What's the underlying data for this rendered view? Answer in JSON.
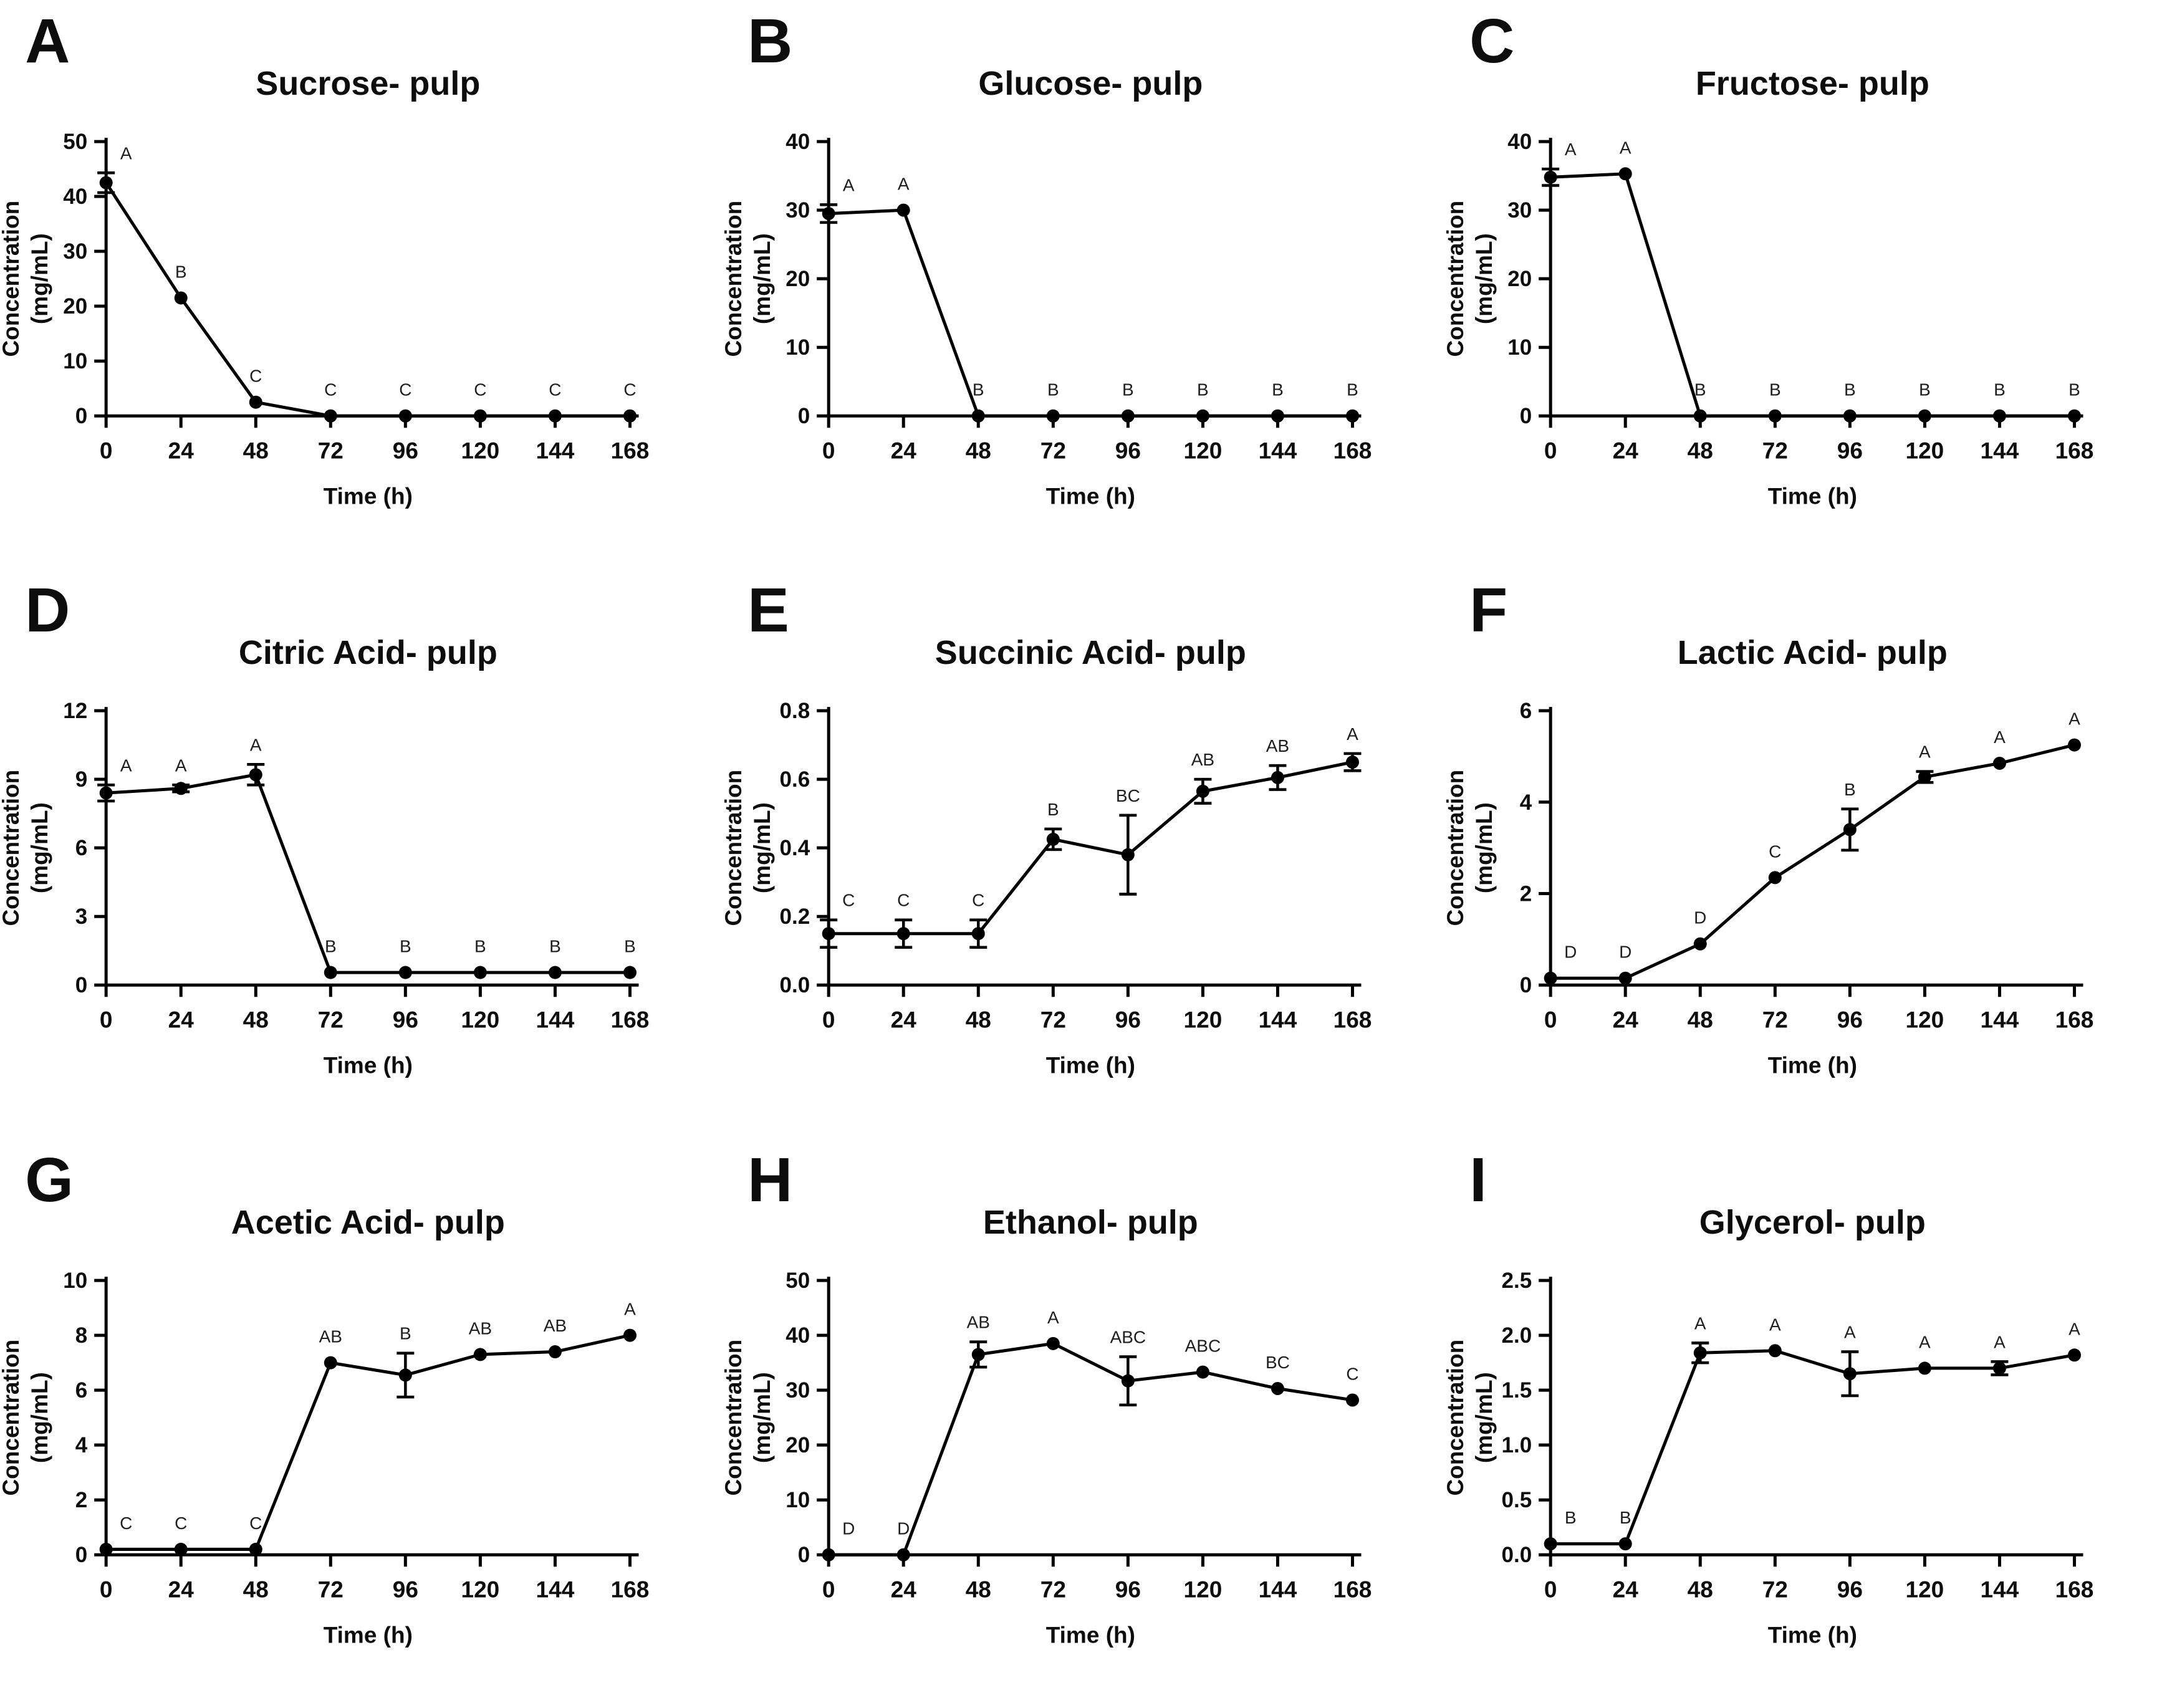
{
  "figure": {
    "background_color": "#ffffff",
    "ink_color": "#000000",
    "letter_color": "#1f1f1f",
    "ylabel_line1": "Concentration",
    "ylabel_line2": "(mg/mL)",
    "xlabel": "Time (h)",
    "x_ticks": [
      "0",
      "24",
      "48",
      "72",
      "96",
      "120",
      "144",
      "168"
    ]
  },
  "chart_data": [
    {
      "type": "line",
      "panel_letter": "A",
      "title": "Sucrose- pulp",
      "xlabel": "Time (h)",
      "ylabel": "Concentration (mg/mL)",
      "x": [
        0,
        24,
        48,
        72,
        96,
        120,
        144,
        168
      ],
      "values": [
        42.5,
        21.5,
        2.5,
        0,
        0,
        0,
        0,
        0
      ],
      "errors": [
        1.8,
        0,
        0,
        0,
        0,
        0,
        0,
        0
      ],
      "point_labels": [
        "A",
        "B",
        "C",
        "C",
        "C",
        "C",
        "C",
        "C"
      ],
      "ylim": [
        0,
        50
      ],
      "yticks": [
        0,
        10,
        20,
        30,
        40,
        50
      ],
      "ytick_labels": [
        "0",
        "10",
        "20",
        "30",
        "40",
        "50"
      ]
    },
    {
      "type": "line",
      "panel_letter": "B",
      "title": "Glucose- pulp",
      "xlabel": "Time (h)",
      "ylabel": "Concentration (mg/mL)",
      "x": [
        0,
        24,
        48,
        72,
        96,
        120,
        144,
        168
      ],
      "values": [
        29.5,
        30.0,
        0,
        0,
        0,
        0,
        0,
        0
      ],
      "errors": [
        1.3,
        0,
        0,
        0,
        0,
        0,
        0,
        0
      ],
      "point_labels": [
        "A",
        "A",
        "B",
        "B",
        "B",
        "B",
        "B",
        "B"
      ],
      "ylim": [
        0,
        40
      ],
      "yticks": [
        0,
        10,
        20,
        30,
        40
      ],
      "ytick_labels": [
        "0",
        "10",
        "20",
        "30",
        "40"
      ]
    },
    {
      "type": "line",
      "panel_letter": "C",
      "title": "Fructose- pulp",
      "xlabel": "Time (h)",
      "ylabel": "Concentration (mg/mL)",
      "x": [
        0,
        24,
        48,
        72,
        96,
        120,
        144,
        168
      ],
      "values": [
        34.8,
        35.3,
        0,
        0,
        0,
        0,
        0,
        0
      ],
      "errors": [
        1.2,
        0,
        0,
        0,
        0,
        0,
        0,
        0
      ],
      "point_labels": [
        "A",
        "A",
        "B",
        "B",
        "B",
        "B",
        "B",
        "B"
      ],
      "ylim": [
        0,
        40
      ],
      "yticks": [
        0,
        10,
        20,
        30,
        40
      ],
      "ytick_labels": [
        "0",
        "10",
        "20",
        "30",
        "40"
      ]
    },
    {
      "type": "line",
      "panel_letter": "D",
      "title": "Citric Acid- pulp",
      "xlabel": "Time (h)",
      "ylabel": "Concentration (mg/mL)",
      "x": [
        0,
        24,
        48,
        72,
        96,
        120,
        144,
        168
      ],
      "values": [
        8.4,
        8.6,
        9.2,
        0.55,
        0.55,
        0.55,
        0.55,
        0.55
      ],
      "errors": [
        0.35,
        0.15,
        0.45,
        0,
        0,
        0,
        0,
        0
      ],
      "point_labels": [
        "A",
        "A",
        "A",
        "B",
        "B",
        "B",
        "B",
        "B"
      ],
      "ylim": [
        0,
        12
      ],
      "yticks": [
        0,
        3,
        6,
        9,
        12
      ],
      "ytick_labels": [
        "0",
        "3",
        "6",
        "9",
        "12"
      ]
    },
    {
      "type": "line",
      "panel_letter": "E",
      "title": "Succinic Acid- pulp",
      "xlabel": "Time (h)",
      "ylabel": "Concentration (mg/mL)",
      "x": [
        0,
        24,
        48,
        72,
        96,
        120,
        144,
        168
      ],
      "values": [
        0.15,
        0.15,
        0.15,
        0.425,
        0.38,
        0.565,
        0.605,
        0.65
      ],
      "errors": [
        0.04,
        0.04,
        0.04,
        0.03,
        0.115,
        0.035,
        0.035,
        0.025
      ],
      "point_labels": [
        "C",
        "C",
        "C",
        "B",
        "BC",
        "AB",
        "AB",
        "A"
      ],
      "ylim": [
        0,
        0.8
      ],
      "yticks": [
        0,
        0.2,
        0.4,
        0.6,
        0.8
      ],
      "ytick_labels": [
        "0.0",
        "0.2",
        "0.4",
        "0.6",
        "0.8"
      ]
    },
    {
      "type": "line",
      "panel_letter": "F",
      "title": "Lactic Acid- pulp",
      "xlabel": "Time (h)",
      "ylabel": "Concentration (mg/mL)",
      "x": [
        0,
        24,
        48,
        72,
        96,
        120,
        144,
        168
      ],
      "values": [
        0.15,
        0.15,
        0.9,
        2.35,
        3.4,
        4.55,
        4.85,
        5.25
      ],
      "errors": [
        0,
        0,
        0,
        0,
        0.45,
        0.12,
        0,
        0
      ],
      "point_labels": [
        "D",
        "D",
        "D",
        "C",
        "B",
        "A",
        "A",
        "A"
      ],
      "ylim": [
        0,
        6
      ],
      "yticks": [
        0,
        2,
        4,
        6
      ],
      "ytick_labels": [
        "0",
        "2",
        "4",
        "6"
      ]
    },
    {
      "type": "line",
      "panel_letter": "G",
      "title": "Acetic Acid- pulp",
      "xlabel": "Time (h)",
      "ylabel": "Concentration (mg/mL)",
      "x": [
        0,
        24,
        48,
        72,
        96,
        120,
        144,
        168
      ],
      "values": [
        0.2,
        0.2,
        0.2,
        7.0,
        6.55,
        7.3,
        7.4,
        8.0
      ],
      "errors": [
        0,
        0,
        0,
        0,
        0.8,
        0,
        0,
        0
      ],
      "point_labels": [
        "C",
        "C",
        "C",
        "AB",
        "B",
        "AB",
        "AB",
        "A"
      ],
      "ylim": [
        0,
        10
      ],
      "yticks": [
        0,
        2,
        4,
        6,
        8,
        10
      ],
      "ytick_labels": [
        "0",
        "2",
        "4",
        "6",
        "8",
        "10"
      ]
    },
    {
      "type": "line",
      "panel_letter": "H",
      "title": "Ethanol- pulp",
      "xlabel": "Time (h)",
      "ylabel": "Concentration (mg/mL)",
      "x": [
        0,
        24,
        48,
        72,
        96,
        120,
        144,
        168
      ],
      "values": [
        0,
        0,
        36.5,
        38.5,
        31.7,
        33.3,
        30.3,
        28.2
      ],
      "errors": [
        0,
        0,
        2.3,
        0,
        4.4,
        0,
        0,
        0
      ],
      "point_labels": [
        "D",
        "D",
        "AB",
        "A",
        "ABC",
        "ABC",
        "BC",
        "C"
      ],
      "ylim": [
        0,
        50
      ],
      "yticks": [
        0,
        10,
        20,
        30,
        40,
        50
      ],
      "ytick_labels": [
        "0",
        "10",
        "20",
        "30",
        "40",
        "50"
      ]
    },
    {
      "type": "line",
      "panel_letter": "I",
      "title": "Glycerol- pulp",
      "xlabel": "Time (h)",
      "ylabel": "Concentration (mg/mL)",
      "x": [
        0,
        24,
        48,
        72,
        96,
        120,
        144,
        168
      ],
      "values": [
        0.1,
        0.1,
        1.84,
        1.86,
        1.65,
        1.7,
        1.7,
        1.82
      ],
      "errors": [
        0,
        0,
        0.09,
        0,
        0.2,
        0,
        0.06,
        0
      ],
      "point_labels": [
        "B",
        "B",
        "A",
        "A",
        "A",
        "A",
        "A",
        "A"
      ],
      "ylim": [
        0,
        2.5
      ],
      "yticks": [
        0,
        0.5,
        1.0,
        1.5,
        2.0,
        2.5
      ],
      "ytick_labels": [
        "0.0",
        "0.5",
        "1.0",
        "1.5",
        "2.0",
        "2.5"
      ]
    }
  ]
}
